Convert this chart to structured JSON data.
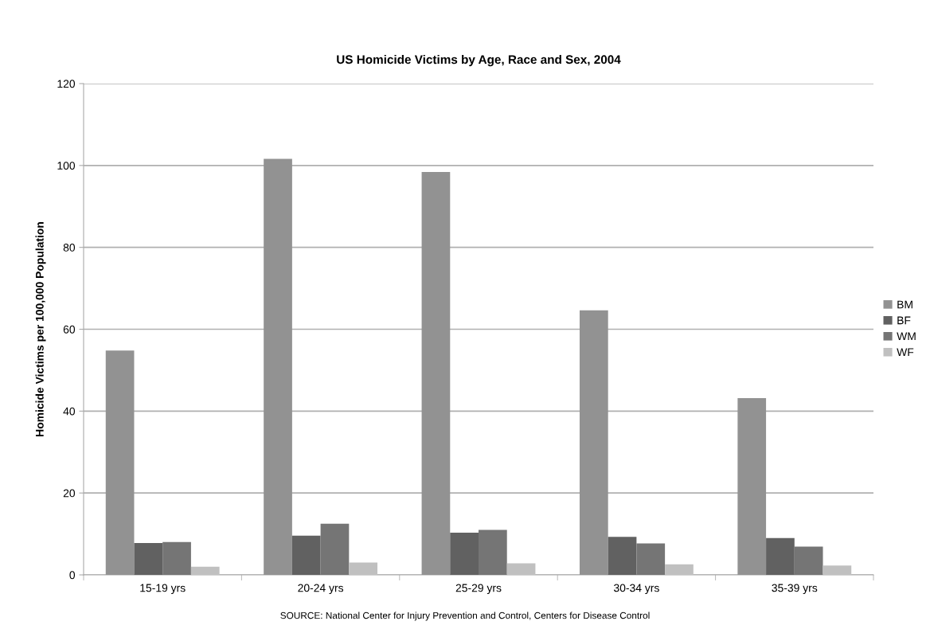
{
  "chart_data": {
    "type": "bar",
    "title": "US Homicide Victims by Age, Race and Sex, 2004",
    "ylabel": "Homicide Victims per 100,000 Population",
    "categories": [
      "15-19 yrs",
      "20-24 yrs",
      "25-29 yrs",
      "30-34 yrs",
      "35-39 yrs"
    ],
    "series": [
      {
        "name": "BM",
        "color": "#929292",
        "values": [
          54.8,
          101.6,
          98.4,
          64.6,
          43.2
        ]
      },
      {
        "name": "BF",
        "color": "#616161",
        "values": [
          7.8,
          9.6,
          10.3,
          9.3,
          9.0
        ]
      },
      {
        "name": "WM",
        "color": "#757575",
        "values": [
          8.0,
          12.5,
          11.0,
          7.7,
          6.9
        ]
      },
      {
        "name": "WF",
        "color": "#c0c0c0",
        "values": [
          2.0,
          3.0,
          2.8,
          2.6,
          2.3
        ]
      }
    ],
    "ylim": [
      0,
      120
    ],
    "yticks": [
      0,
      20,
      40,
      60,
      80,
      100,
      120
    ],
    "grid": "y",
    "legend": "right",
    "annotations": [
      "SOURCE: National Center for Injury Prevention and Control, Centers for Disease Control"
    ]
  }
}
